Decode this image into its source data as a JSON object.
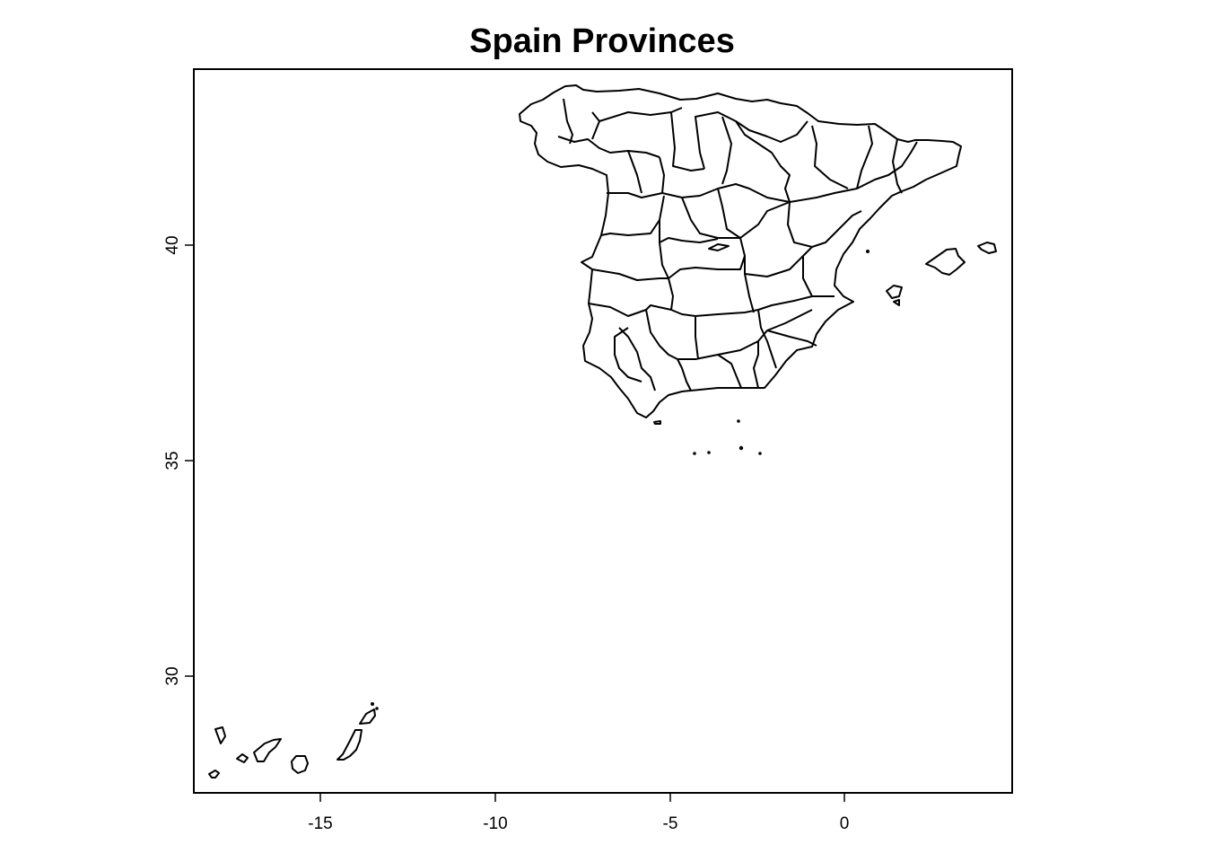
{
  "title": "Spain Provinces",
  "axes": {
    "x_ticks": [
      {
        "value": -15,
        "label": "-15"
      },
      {
        "value": -10,
        "label": "-10"
      },
      {
        "value": -5,
        "label": "-5"
      },
      {
        "value": 0,
        "label": "0"
      }
    ],
    "y_ticks": [
      {
        "value": 40,
        "label": "40"
      },
      {
        "value": 35,
        "label": "35"
      },
      {
        "value": 30,
        "label": "30"
      }
    ],
    "xlim": [
      -18.6,
      4.8
    ],
    "ylim": [
      27.4,
      44.2
    ]
  },
  "map": {
    "type": "province boundary outlines",
    "stroke_color": "#000000",
    "fill_color": "#ffffff"
  }
}
